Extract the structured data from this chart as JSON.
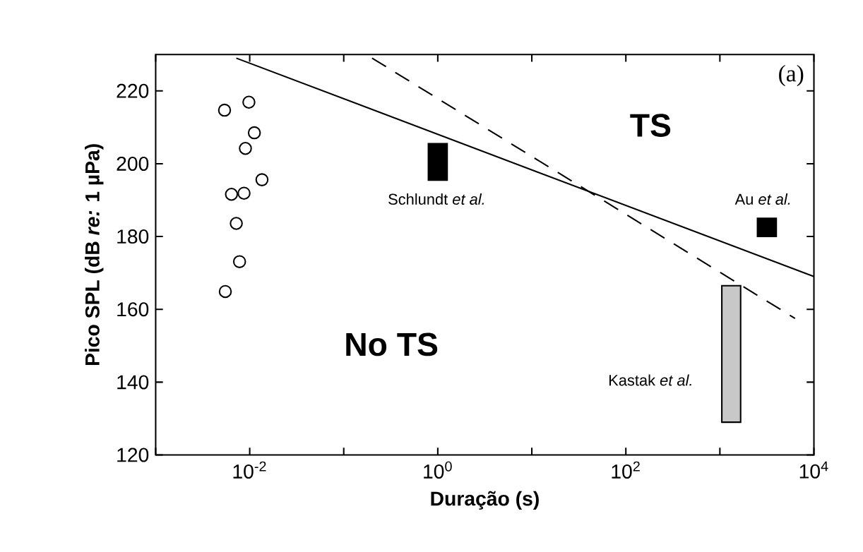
{
  "chart_data": {
    "type": "scatter",
    "xlabel": "Duração (s)",
    "ylabel": "Pico SPL (dB *re:* 1 µPa)",
    "log": "x",
    "grid": false,
    "xlim": [
      0.001,
      10000
    ],
    "ylim": [
      120,
      230
    ],
    "xticks": [
      {
        "value": 0.001,
        "label": null
      },
      {
        "value": 0.01,
        "label": "10$^{-2}$"
      },
      {
        "value": 0.1,
        "label": null
      },
      {
        "value": 1,
        "label": "10$^{0}$"
      },
      {
        "value": 10,
        "label": null
      },
      {
        "value": 100,
        "label": "10$^{2}$"
      },
      {
        "value": 1000,
        "label": null
      },
      {
        "value": 10000,
        "label": "10$^{4}$"
      }
    ],
    "yticks": [
      120,
      140,
      160,
      180,
      200,
      220
    ],
    "series": [
      {
        "marker": "circle",
        "color": "#000000",
        "x": [
          0.0054,
          0.0098,
          0.0112,
          0.009,
          0.0135,
          0.0064,
          0.0087,
          0.0072,
          0.0078,
          0.0055
        ],
        "values": [
          214.7,
          216.9,
          208.5,
          204.2,
          195.6,
          191.6,
          191.9,
          183.6,
          173.1,
          164.9
        ]
      },
      {
        "type": "line",
        "line_style": "solid",
        "color": "#000000",
        "x": [
          0.0072,
          10000
        ],
        "values": [
          229,
          169
        ]
      },
      {
        "type": "line",
        "line_style": "dashed",
        "color": "#000000",
        "x": [
          0.2,
          6300
        ],
        "values": [
          229,
          157.5
        ]
      },
      {
        "type": "bar",
        "color": "#000000",
        "x": [
          1
        ],
        "base": [
          195.5
        ],
        "values": [
          10
        ]
      },
      {
        "type": "bar",
        "color": "#000000",
        "x": [
          3160
        ],
        "base": [
          180
        ],
        "values": [
          5
        ]
      },
      {
        "type": "bar",
        "color": "#c8c8c8",
        "x": [
          1320
        ],
        "base": [
          129
        ],
        "values": [
          37.5
        ]
      }
    ],
    "annotations": [
      "TS",
      "No TS",
      "Schlundt *et al.*",
      "Au *et al.*",
      "Kastak *et al.*",
      "(a)"
    ]
  }
}
